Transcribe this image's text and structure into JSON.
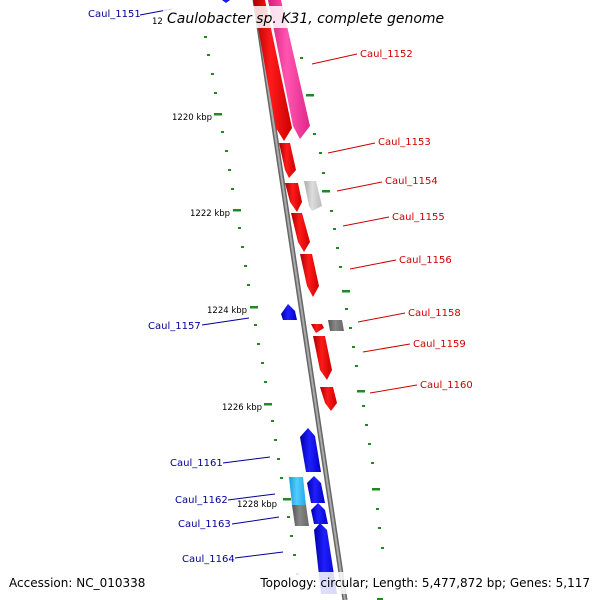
{
  "title": "Caulobacter sp. K31, complete genome",
  "footer": {
    "accession": "Accession: NC_010338",
    "summary": "Topology: circular; Length: 5,477,872 bp; Genes: 5,117"
  },
  "colors": {
    "forward_cds": "#ff0000",
    "reverse_cds": "#0000ff",
    "forward_rna": "#ff44aa",
    "reverse_rna": "#44bbff",
    "pseudo": "#777777",
    "backbone": "#888888",
    "tick": "#228822",
    "forward_label": "#cc0000",
    "reverse_label": "#000099"
  },
  "tick_labels": [
    "12",
    "1220 kbp",
    "1222 kbp",
    "1224 kbp",
    "1226 kbp",
    "1228 kbp"
  ],
  "reverse_labels": [
    "Caul_1151",
    "Caul_1157",
    "Caul_1161",
    "Caul_1162",
    "Caul_1163",
    "Caul_1164"
  ],
  "forward_labels": [
    "Caul_1152",
    "Caul_1153",
    "Caul_1154",
    "Caul_1155",
    "Caul_1156",
    "Caul_1158",
    "Caul_1159",
    "Caul_1160"
  ]
}
